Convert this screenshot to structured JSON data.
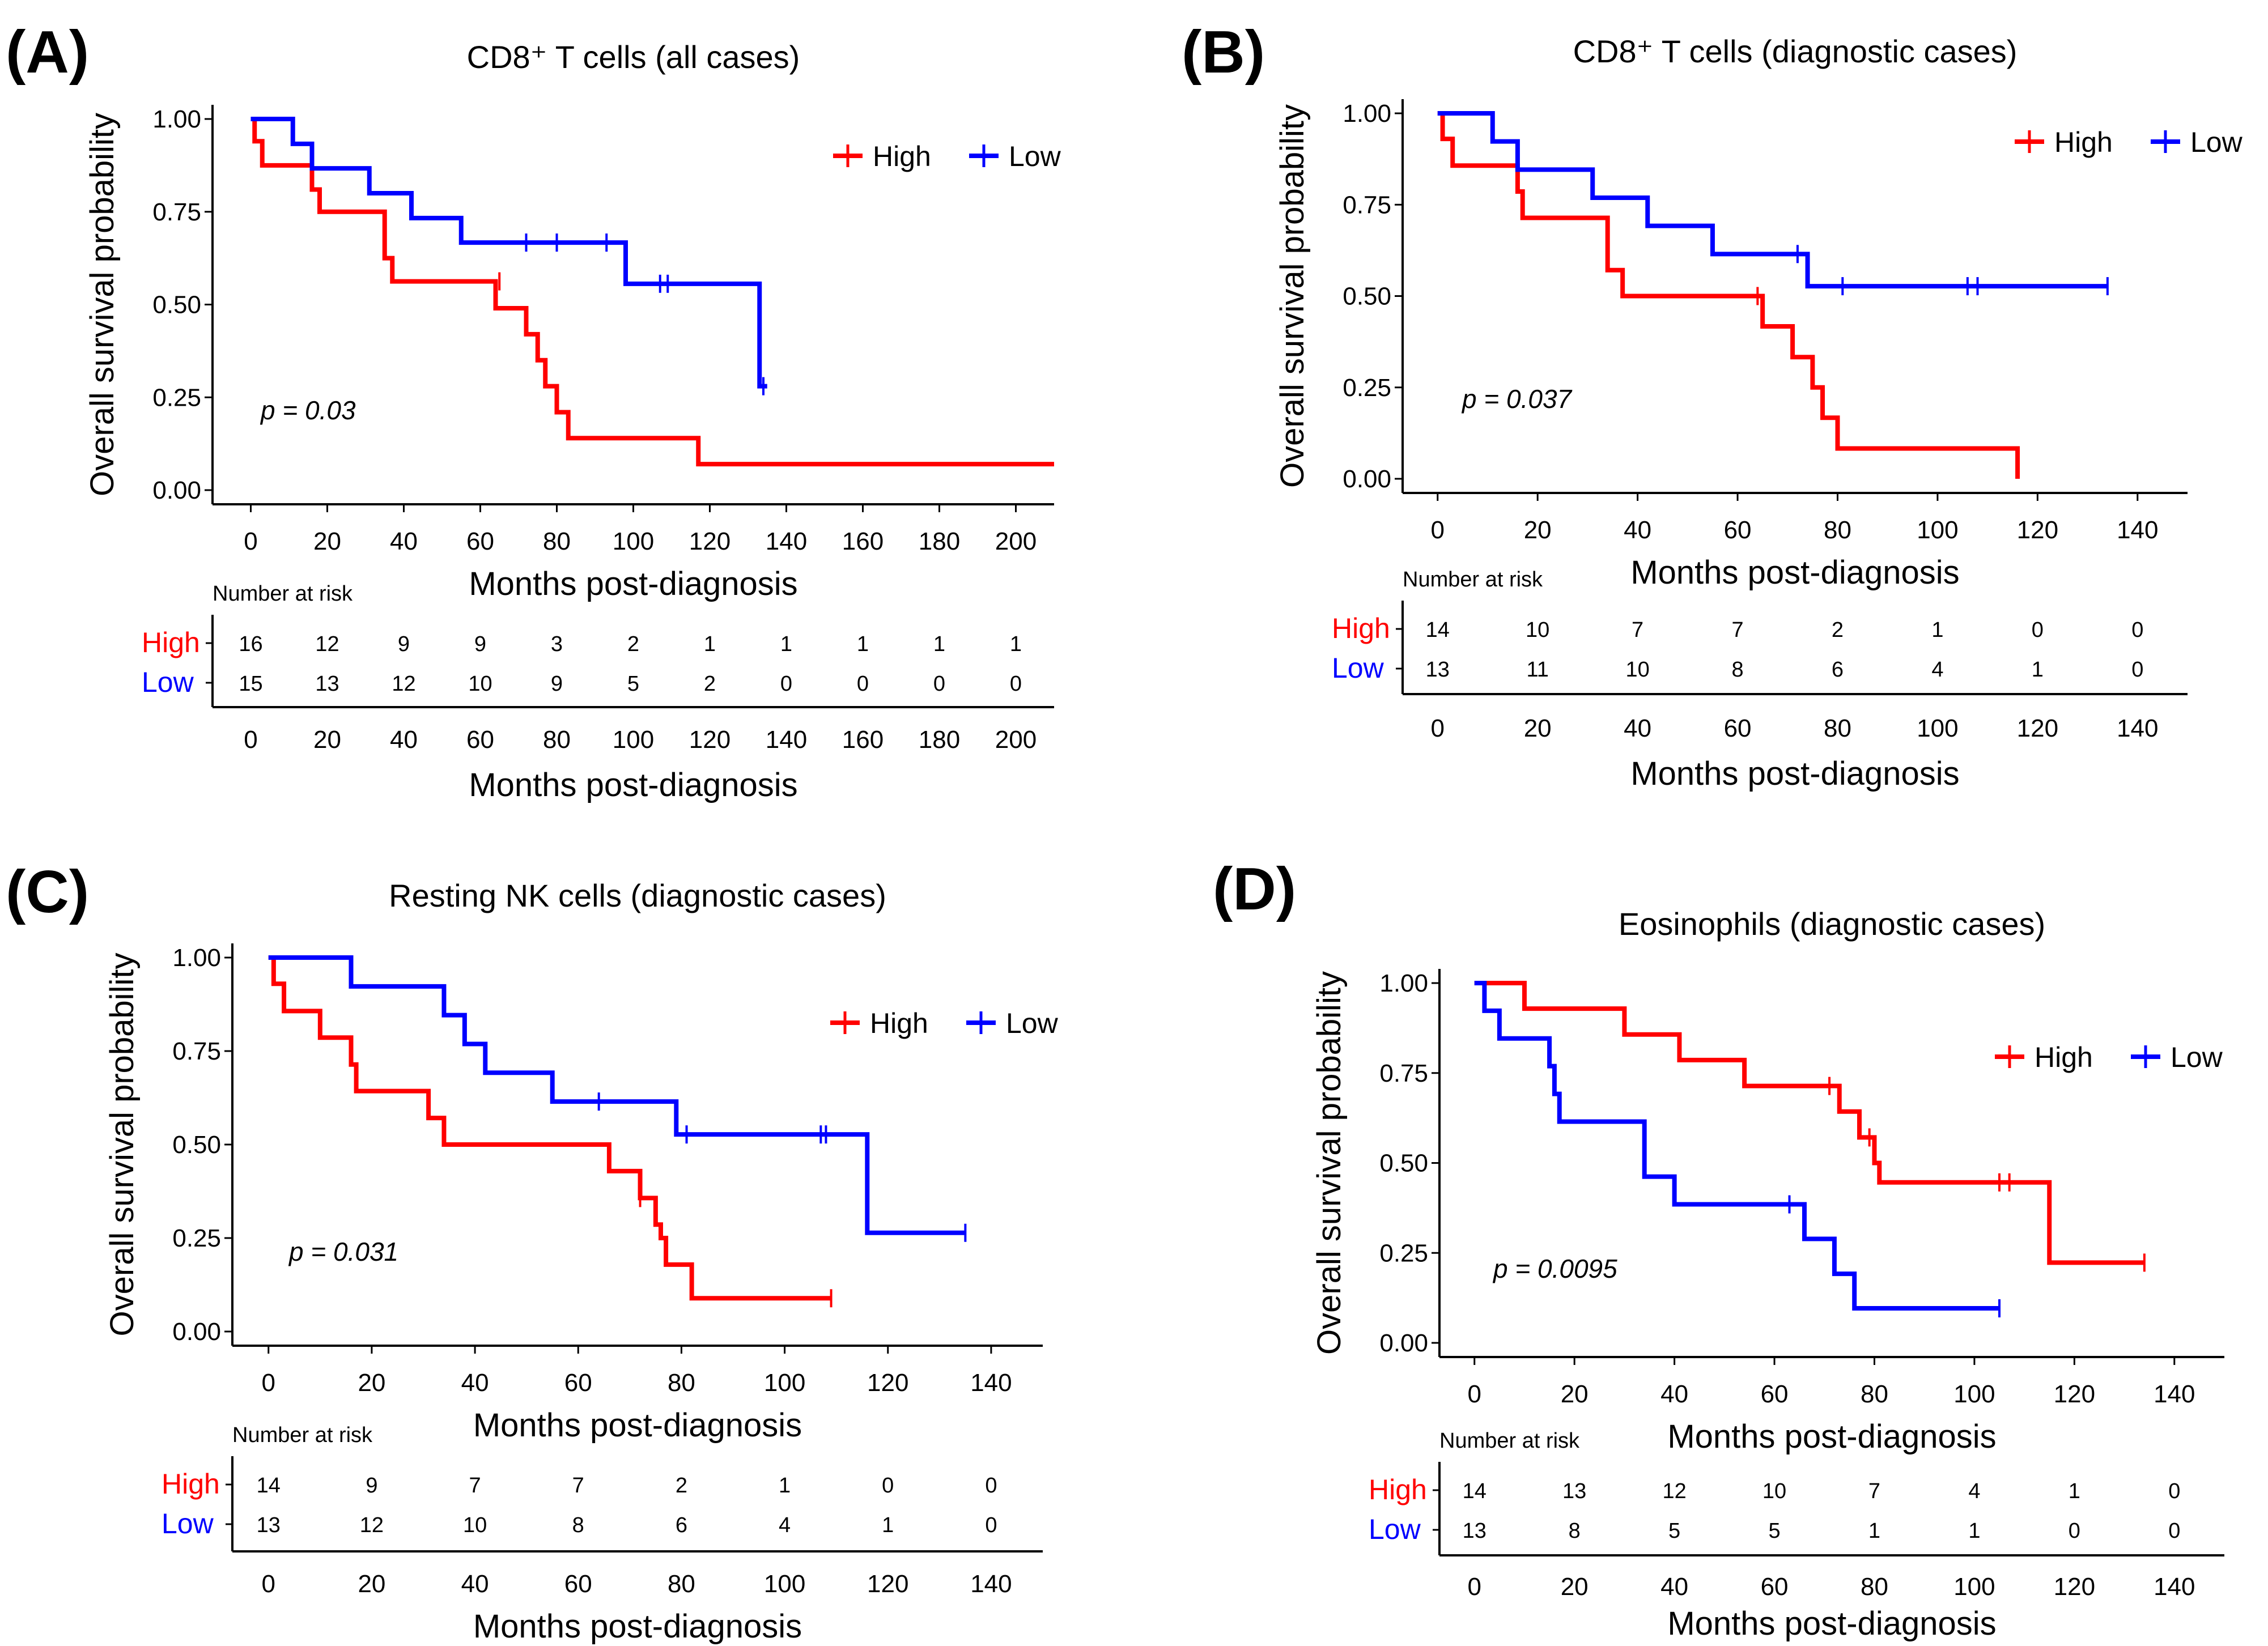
{
  "figure": {
    "y_axis_label": "Overall survival probability",
    "x_axis_label": "Months post-diagnosis",
    "risk_table_header": "Number at risk",
    "series_colors": {
      "High": "#ff0000",
      "Low": "#0000ff"
    },
    "legend_labels": [
      "High",
      "Low"
    ],
    "y_tick_labels": [
      "0.00",
      "0.25",
      "0.50",
      "0.75",
      "1.00"
    ]
  },
  "chart_data": [
    {
      "panel": "(A)",
      "type": "line",
      "subtype": "kaplan-meier",
      "title": "CD8⁺ T cells (all cases)",
      "xlabel": "Months post-diagnosis",
      "ylabel": "Overall survival probability",
      "xlim": [
        -10,
        210
      ],
      "ylim": [
        0,
        1
      ],
      "x_ticks": [
        0,
        20,
        40,
        60,
        80,
        100,
        120,
        140,
        160,
        180,
        200
      ],
      "y_ticks": [
        0,
        0.25,
        0.5,
        0.75,
        1.0
      ],
      "p_value": "p = 0.03",
      "legend": [
        "High",
        "Low"
      ],
      "series": [
        {
          "name": "High",
          "color": "#ff0000",
          "steps": [
            [
              0,
              1.0
            ],
            [
              1,
              0.94
            ],
            [
              3,
              0.875
            ],
            [
              16,
              0.81
            ],
            [
              18,
              0.75
            ],
            [
              35,
              0.625
            ],
            [
              37,
              0.5625
            ],
            [
              64,
              0.49
            ],
            [
              72,
              0.42
            ],
            [
              75,
              0.35
            ],
            [
              77,
              0.28
            ],
            [
              80,
              0.21
            ],
            [
              83,
              0.14
            ],
            [
              117,
              0.07
            ],
            [
              210,
              0.07
            ]
          ],
          "censor": [
            [
              65,
              0.5625
            ]
          ]
        },
        {
          "name": "Low",
          "color": "#0000ff",
          "steps": [
            [
              0,
              1.0
            ],
            [
              11,
              0.933
            ],
            [
              16,
              0.867
            ],
            [
              31,
              0.8
            ],
            [
              42,
              0.733
            ],
            [
              55,
              0.667
            ],
            [
              98,
              0.556
            ],
            [
              133,
              0.28
            ],
            [
              135,
              0.28
            ]
          ],
          "censor": [
            [
              72,
              0.667
            ],
            [
              80,
              0.667
            ],
            [
              93,
              0.667
            ],
            [
              107,
              0.556
            ],
            [
              109,
              0.556
            ],
            [
              134,
              0.28
            ]
          ]
        }
      ],
      "risk_table": {
        "times": [
          0,
          20,
          40,
          60,
          80,
          100,
          120,
          140,
          160,
          180,
          200
        ],
        "High": [
          16,
          12,
          9,
          9,
          3,
          2,
          1,
          1,
          1,
          1,
          1
        ],
        "Low": [
          15,
          13,
          12,
          10,
          9,
          5,
          2,
          0,
          0,
          0,
          0
        ]
      }
    },
    {
      "panel": "(B)",
      "type": "line",
      "subtype": "kaplan-meier",
      "title": "CD8⁺ T cells (diagnostic cases)",
      "xlabel": "Months post-diagnosis",
      "ylabel": "Overall survival probability",
      "xlim": [
        -7,
        150
      ],
      "ylim": [
        0,
        1
      ],
      "x_ticks": [
        0,
        20,
        40,
        60,
        80,
        100,
        120,
        140
      ],
      "y_ticks": [
        0,
        0.25,
        0.5,
        0.75,
        1.0
      ],
      "p_value": "p = 0.037",
      "legend": [
        "High",
        "Low"
      ],
      "series": [
        {
          "name": "High",
          "color": "#ff0000",
          "steps": [
            [
              0,
              1.0
            ],
            [
              1,
              0.93
            ],
            [
              3,
              0.857
            ],
            [
              16,
              0.786
            ],
            [
              17,
              0.714
            ],
            [
              34,
              0.571
            ],
            [
              37,
              0.5
            ],
            [
              65,
              0.417
            ],
            [
              71,
              0.333
            ],
            [
              75,
              0.25
            ],
            [
              77,
              0.167
            ],
            [
              80,
              0.083
            ],
            [
              116,
              0.0
            ]
          ],
          "censor": [
            [
              64,
              0.5
            ]
          ]
        },
        {
          "name": "Low",
          "color": "#0000ff",
          "steps": [
            [
              0,
              1.0
            ],
            [
              11,
              0.923
            ],
            [
              16,
              0.846
            ],
            [
              31,
              0.769
            ],
            [
              42,
              0.692
            ],
            [
              55,
              0.615
            ],
            [
              74,
              0.527
            ],
            [
              134,
              0.527
            ]
          ],
          "censor": [
            [
              72,
              0.615
            ],
            [
              81,
              0.527
            ],
            [
              106,
              0.527
            ],
            [
              108,
              0.527
            ],
            [
              134,
              0.527
            ]
          ]
        }
      ],
      "risk_table": {
        "times": [
          0,
          20,
          40,
          60,
          80,
          100,
          120,
          140
        ],
        "High": [
          14,
          10,
          7,
          7,
          2,
          1,
          0,
          0
        ],
        "Low": [
          13,
          11,
          10,
          8,
          6,
          4,
          1,
          0
        ]
      }
    },
    {
      "panel": "(C)",
      "type": "line",
      "subtype": "kaplan-meier",
      "title": "Resting NK cells (diagnostic cases)",
      "xlabel": "Months post-diagnosis",
      "ylabel": "Overall survival probability",
      "xlim": [
        -7,
        150
      ],
      "ylim": [
        0,
        1
      ],
      "x_ticks": [
        0,
        20,
        40,
        60,
        80,
        100,
        120,
        140
      ],
      "y_ticks": [
        0,
        0.25,
        0.5,
        0.75,
        1.0
      ],
      "p_value": "p = 0.031",
      "legend": [
        "High",
        "Low"
      ],
      "series": [
        {
          "name": "High",
          "color": "#ff0000",
          "steps": [
            [
              0,
              1.0
            ],
            [
              1,
              0.93
            ],
            [
              3,
              0.857
            ],
            [
              10,
              0.786
            ],
            [
              16,
              0.714
            ],
            [
              17,
              0.643
            ],
            [
              31,
              0.571
            ],
            [
              34,
              0.5
            ],
            [
              66,
              0.429
            ],
            [
              72,
              0.357
            ],
            [
              75,
              0.286
            ],
            [
              76,
              0.25
            ],
            [
              77,
              0.179
            ],
            [
              82,
              0.089
            ],
            [
              109,
              0.089
            ]
          ],
          "censor": [
            [
              72,
              0.357
            ],
            [
              109,
              0.089
            ]
          ]
        },
        {
          "name": "Low",
          "color": "#0000ff",
          "steps": [
            [
              0,
              1.0
            ],
            [
              16,
              0.923
            ],
            [
              34,
              0.846
            ],
            [
              38,
              0.769
            ],
            [
              42,
              0.692
            ],
            [
              55,
              0.615
            ],
            [
              79,
              0.527
            ],
            [
              116,
              0.264
            ],
            [
              135,
              0.264
            ]
          ],
          "censor": [
            [
              64,
              0.615
            ],
            [
              81,
              0.527
            ],
            [
              107,
              0.527
            ],
            [
              108,
              0.527
            ],
            [
              135,
              0.264
            ]
          ]
        }
      ],
      "risk_table": {
        "times": [
          0,
          20,
          40,
          60,
          80,
          100,
          120,
          140
        ],
        "High": [
          14,
          9,
          7,
          7,
          2,
          1,
          0,
          0
        ],
        "Low": [
          13,
          12,
          10,
          8,
          6,
          4,
          1,
          0
        ]
      }
    },
    {
      "panel": "(D)",
      "type": "line",
      "subtype": "kaplan-meier",
      "title": "Eosinophils (diagnostic cases)",
      "xlabel": "Months post-diagnosis",
      "ylabel": "Overall survival probability",
      "xlim": [
        -7,
        150
      ],
      "ylim": [
        0,
        1
      ],
      "x_ticks": [
        0,
        20,
        40,
        60,
        80,
        100,
        120,
        140
      ],
      "y_ticks": [
        0,
        0.25,
        0.5,
        0.75,
        1.0
      ],
      "p_value": "p = 0.0095",
      "legend": [
        "High",
        "Low"
      ],
      "series": [
        {
          "name": "High",
          "color": "#ff0000",
          "steps": [
            [
              0,
              1.0
            ],
            [
              10,
              0.929
            ],
            [
              30,
              0.857
            ],
            [
              41,
              0.786
            ],
            [
              54,
              0.714
            ],
            [
              73,
              0.643
            ],
            [
              77,
              0.571
            ],
            [
              80,
              0.5
            ],
            [
              81,
              0.446
            ],
            [
              115,
              0.223
            ],
            [
              134,
              0.223
            ]
          ],
          "censor": [
            [
              71,
              0.714
            ],
            [
              79,
              0.571
            ],
            [
              105,
              0.446
            ],
            [
              107,
              0.446
            ],
            [
              134,
              0.223
            ]
          ]
        },
        {
          "name": "Low",
          "color": "#0000ff",
          "steps": [
            [
              0,
              1.0
            ],
            [
              2,
              0.923
            ],
            [
              5,
              0.846
            ],
            [
              15,
              0.769
            ],
            [
              16,
              0.692
            ],
            [
              17,
              0.615
            ],
            [
              34,
              0.462
            ],
            [
              40,
              0.385
            ],
            [
              66,
              0.289
            ],
            [
              72,
              0.192
            ],
            [
              76,
              0.096
            ],
            [
              105,
              0.096
            ]
          ],
          "censor": [
            [
              63,
              0.385
            ],
            [
              105,
              0.096
            ]
          ]
        }
      ],
      "risk_table": {
        "times": [
          0,
          20,
          40,
          60,
          80,
          100,
          120,
          140
        ],
        "High": [
          14,
          13,
          12,
          10,
          7,
          4,
          1,
          0
        ],
        "Low": [
          13,
          8,
          5,
          5,
          1,
          1,
          0,
          0
        ]
      }
    }
  ]
}
